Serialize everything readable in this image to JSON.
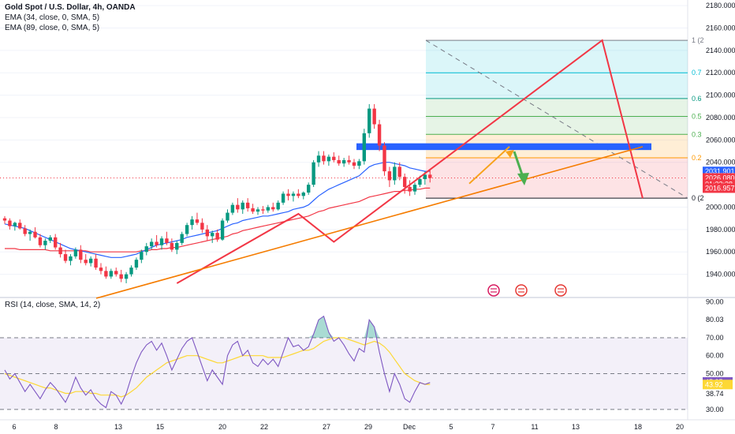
{
  "legend": {
    "title": "Gold Spot / U.S. Dollar, 4h, OANDA",
    "ema34": "EMA (34, close, 0, SMA, 5)",
    "ema89": "EMA (89, close, 0, SMA, 5)",
    "rsi": "RSI (14, close, SMA, 14, 2)"
  },
  "colors": {
    "bull": "#089981",
    "bear": "#f23645",
    "ema34": "#2962ff",
    "ema89": "#f23645",
    "rsi": "#7e57c2",
    "rsi_ma": "#fdd835",
    "zone": "#2962ff",
    "trend": "#f57c00",
    "zigzag": "#f23645",
    "arrow_up": "#f7a21b",
    "arrow_down": "#4caf50"
  },
  "chart_data": [
    {
      "type": "candlestick",
      "ylim": [
        1920,
        2185
      ],
      "y_ticks": [
        "2180.000",
        "2160.000",
        "2140.000",
        "2120.000",
        "2100.000",
        "2080.000",
        "2060.000",
        "2040.000",
        "2000.000",
        "1980.000",
        "1960.000",
        "1940.000"
      ],
      "x_ticks": [
        "6",
        "8",
        "13",
        "15",
        "20",
        "22",
        "27",
        "29",
        "Dec",
        "5",
        "7",
        "11",
        "13",
        "18",
        "20"
      ],
      "price_badges": [
        {
          "label": "2031.901",
          "value": 2031.9,
          "color": "#2962ff"
        },
        {
          "label": "2026.080",
          "value": 2026.08,
          "color": "#f23645"
        },
        {
          "label": "01:33:28",
          "value": 2020.5,
          "color": "#f23645"
        },
        {
          "label": "2016.957",
          "value": 2016.96,
          "color": "#f23645"
        }
      ],
      "fib_levels": [
        {
          "label": "1 (2",
          "value": 2149
        },
        {
          "label": "0.7",
          "value": 2120
        },
        {
          "label": "0.6",
          "value": 2097
        },
        {
          "label": "0.5",
          "value": 2081
        },
        {
          "label": "0.3",
          "value": 2065
        },
        {
          "label": "0.2",
          "value": 2044
        },
        {
          "label": "0 (2",
          "value": 2008
        }
      ],
      "zigzag": [
        {
          "t": 34,
          "v": 1932
        },
        {
          "t": 58,
          "v": 1994
        },
        {
          "t": 65,
          "v": 1969
        },
        {
          "t": 118,
          "v": 2149
        },
        {
          "t": 126,
          "v": 2008
        }
      ],
      "ohlc": [
        [
          1990,
          1992,
          1985,
          1988
        ],
        [
          1988,
          1990,
          1980,
          1983
        ],
        [
          1983,
          1987,
          1979,
          1986
        ],
        [
          1986,
          1989,
          1980,
          1981
        ],
        [
          1981,
          1984,
          1974,
          1976
        ],
        [
          1976,
          1980,
          1970,
          1978
        ],
        [
          1978,
          1982,
          1972,
          1973
        ],
        [
          1973,
          1976,
          1964,
          1966
        ],
        [
          1966,
          1972,
          1962,
          1970
        ],
        [
          1970,
          1975,
          1968,
          1973
        ],
        [
          1973,
          1976,
          1962,
          1964
        ],
        [
          1964,
          1968,
          1955,
          1958
        ],
        [
          1958,
          1962,
          1950,
          1952
        ],
        [
          1952,
          1958,
          1948,
          1956
        ],
        [
          1956,
          1964,
          1954,
          1962
        ],
        [
          1962,
          1966,
          1950,
          1953
        ],
        [
          1953,
          1958,
          1948,
          1950
        ],
        [
          1950,
          1956,
          1947,
          1954
        ],
        [
          1954,
          1958,
          1944,
          1946
        ],
        [
          1946,
          1950,
          1940,
          1943
        ],
        [
          1943,
          1947,
          1936,
          1938
        ],
        [
          1938,
          1945,
          1936,
          1943
        ],
        [
          1943,
          1946,
          1938,
          1940
        ],
        [
          1940,
          1944,
          1933,
          1936
        ],
        [
          1936,
          1942,
          1932,
          1940
        ],
        [
          1940,
          1948,
          1938,
          1946
        ],
        [
          1946,
          1955,
          1944,
          1953
        ],
        [
          1953,
          1962,
          1950,
          1960
        ],
        [
          1960,
          1968,
          1957,
          1965
        ],
        [
          1965,
          1972,
          1962,
          1969
        ],
        [
          1969,
          1975,
          1964,
          1966
        ],
        [
          1966,
          1974,
          1962,
          1972
        ],
        [
          1972,
          1978,
          1966,
          1968
        ],
        [
          1968,
          1972,
          1960,
          1962
        ],
        [
          1962,
          1970,
          1958,
          1968
        ],
        [
          1968,
          1978,
          1966,
          1976
        ],
        [
          1976,
          1986,
          1974,
          1984
        ],
        [
          1984,
          1992,
          1980,
          1989
        ],
        [
          1989,
          1995,
          1984,
          1986
        ],
        [
          1986,
          1990,
          1977,
          1980
        ],
        [
          1980,
          1984,
          1970,
          1974
        ],
        [
          1974,
          1979,
          1968,
          1977
        ],
        [
          1977,
          1980,
          1969,
          1971
        ],
        [
          1971,
          1990,
          1970,
          1988
        ],
        [
          1988,
          1998,
          1986,
          1995
        ],
        [
          1995,
          2004,
          1993,
          2002
        ],
        [
          2002,
          2008,
          1995,
          1998
        ],
        [
          1998,
          2006,
          1994,
          2004
        ],
        [
          2004,
          2008,
          1996,
          1999
        ],
        [
          1999,
          2003,
          1994,
          1996
        ],
        [
          1996,
          2000,
          1993,
          1998
        ],
        [
          1998,
          2001,
          1994,
          1997
        ],
        [
          1997,
          2002,
          1995,
          2000
        ],
        [
          2000,
          2004,
          1996,
          1998
        ],
        [
          1998,
          2006,
          1997,
          2004
        ],
        [
          2004,
          2014,
          2002,
          2012
        ],
        [
          2012,
          2016,
          2006,
          2010
        ],
        [
          2010,
          2014,
          2005,
          2012
        ],
        [
          2012,
          2016,
          2008,
          2010
        ],
        [
          2010,
          2014,
          2007,
          2013
        ],
        [
          2013,
          2022,
          2011,
          2020
        ],
        [
          2020,
          2042,
          2018,
          2040
        ],
        [
          2040,
          2050,
          2036,
          2046
        ],
        [
          2046,
          2050,
          2038,
          2041
        ],
        [
          2041,
          2047,
          2037,
          2045
        ],
        [
          2045,
          2049,
          2040,
          2042
        ],
        [
          2042,
          2046,
          2037,
          2039
        ],
        [
          2039,
          2044,
          2036,
          2042
        ],
        [
          2042,
          2046,
          2038,
          2040
        ],
        [
          2040,
          2043,
          2034,
          2037
        ],
        [
          2037,
          2043,
          2034,
          2041
        ],
        [
          2041,
          2070,
          2038,
          2066
        ],
        [
          2066,
          2092,
          2062,
          2088
        ],
        [
          2088,
          2092,
          2070,
          2074
        ],
        [
          2074,
          2078,
          2050,
          2055
        ],
        [
          2055,
          2058,
          2028,
          2032
        ],
        [
          2032,
          2036,
          2018,
          2024
        ],
        [
          2024,
          2040,
          2020,
          2036
        ],
        [
          2036,
          2040,
          2024,
          2027
        ],
        [
          2027,
          2030,
          2012,
          2018
        ],
        [
          2018,
          2024,
          2010,
          2014
        ],
        [
          2014,
          2022,
          2011,
          2020
        ],
        [
          2020,
          2028,
          2018,
          2025
        ],
        [
          2025,
          2032,
          2020,
          2029
        ],
        [
          2029,
          2034,
          2022,
          2026
        ]
      ],
      "ema34": [
        1985,
        1984,
        1983,
        1982,
        1981,
        1979,
        1977,
        1975,
        1973,
        1971,
        1969,
        1967,
        1965,
        1963,
        1962,
        1961,
        1960,
        1959,
        1958,
        1957,
        1956,
        1955,
        1955,
        1955,
        1956,
        1957,
        1958,
        1960,
        1962,
        1964,
        1966,
        1967,
        1968,
        1969,
        1970,
        1971,
        1973,
        1974,
        1975,
        1976,
        1977,
        1978,
        1979,
        1981,
        1983,
        1985,
        1986,
        1988,
        1989,
        1990,
        1991,
        1992,
        1992,
        1993,
        1994,
        1995,
        1996,
        1998,
        1999,
        2000,
        2002,
        2006,
        2010,
        2013,
        2016,
        2018,
        2020,
        2022,
        2024,
        2026,
        2028,
        2032,
        2036,
        2038,
        2039,
        2040,
        2040,
        2039,
        2038,
        2037,
        2035,
        2034,
        2033,
        2032,
        2032
      ],
      "ema89": [
        1963,
        1963,
        1963,
        1962,
        1962,
        1962,
        1962,
        1962,
        1962,
        1961,
        1961,
        1961,
        1961,
        1961,
        1961,
        1961,
        1961,
        1960,
        1960,
        1960,
        1960,
        1960,
        1960,
        1960,
        1960,
        1960,
        1960,
        1961,
        1961,
        1962,
        1962,
        1963,
        1963,
        1964,
        1964,
        1965,
        1966,
        1967,
        1968,
        1969,
        1970,
        1971,
        1972,
        1973,
        1974,
        1976,
        1977,
        1979,
        1980,
        1981,
        1982,
        1983,
        1984,
        1985,
        1986,
        1987,
        1988,
        1989,
        1990,
        1991,
        1992,
        1994,
        1996,
        1997,
        1999,
        2000,
        2001,
        2002,
        2003,
        2004,
        2005,
        2007,
        2009,
        2010,
        2011,
        2012,
        2013,
        2014,
        2014,
        2015,
        2015,
        2016,
        2016,
        2017,
        2017
      ]
    },
    {
      "type": "line",
      "title": "RSI (14, close, SMA, 14, 2)",
      "ylim": [
        26,
        92
      ],
      "y_ticks": [
        "90.00",
        "80.03",
        "70.00",
        "60.00",
        "50.00",
        "38.74",
        "30.00"
      ],
      "bands": [
        30,
        50,
        70
      ],
      "badges": [
        {
          "label": "45.35",
          "value": 45.35,
          "color": "#7e57c2"
        },
        {
          "label": "43.92",
          "value": 43.92,
          "color": "#fdd835"
        }
      ],
      "rsi": [
        52,
        47,
        50,
        45,
        40,
        44,
        40,
        36,
        41,
        45,
        42,
        38,
        34,
        40,
        48,
        42,
        38,
        41,
        36,
        33,
        31,
        40,
        38,
        33,
        39,
        48,
        56,
        62,
        66,
        68,
        63,
        67,
        60,
        52,
        58,
        64,
        68,
        70,
        62,
        54,
        46,
        52,
        48,
        44,
        60,
        66,
        68,
        60,
        63,
        56,
        54,
        58,
        55,
        58,
        54,
        62,
        70,
        65,
        66,
        63,
        65,
        72,
        80,
        82,
        73,
        68,
        70,
        66,
        61,
        57,
        64,
        62,
        80,
        76,
        62,
        50,
        40,
        50,
        44,
        36,
        34,
        40,
        45,
        44,
        45
      ],
      "rsi_ma": [
        50,
        49,
        48,
        47,
        46,
        45,
        44,
        43,
        42,
        42,
        41,
        40,
        39,
        39,
        40,
        40,
        40,
        39,
        39,
        38,
        38,
        38,
        38,
        37,
        38,
        40,
        42,
        45,
        48,
        50,
        52,
        54,
        56,
        57,
        58,
        59,
        60,
        60,
        60,
        59,
        58,
        57,
        56,
        56,
        57,
        58,
        59,
        60,
        60,
        60,
        60,
        60,
        59,
        59,
        59,
        59,
        60,
        61,
        62,
        63,
        63,
        64,
        66,
        68,
        69,
        70,
        70,
        70,
        69,
        68,
        67,
        66,
        67,
        68,
        67,
        65,
        62,
        58,
        54,
        50,
        48,
        46,
        45,
        44,
        44
      ]
    }
  ]
}
